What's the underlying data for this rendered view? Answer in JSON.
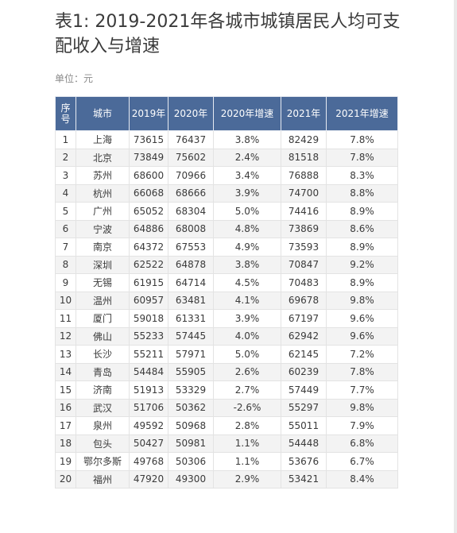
{
  "title": "表1: 2019-2021年各城市城镇居民人均可支配收入与增速",
  "unit": "单位：元",
  "table": {
    "headers": [
      "序号",
      "城市",
      "2019年",
      "2020年",
      "2020年增速",
      "2021年",
      "2021年增速"
    ],
    "rows": [
      [
        "1",
        "上海",
        "73615",
        "76437",
        "3.8%",
        "82429",
        "7.8%"
      ],
      [
        "2",
        "北京",
        "73849",
        "75602",
        "2.4%",
        "81518",
        "7.8%"
      ],
      [
        "3",
        "苏州",
        "68600",
        "70966",
        "3.4%",
        "76888",
        "8.3%"
      ],
      [
        "4",
        "杭州",
        "66068",
        "68666",
        "3.9%",
        "74700",
        "8.8%"
      ],
      [
        "5",
        "广州",
        "65052",
        "68304",
        "5.0%",
        "74416",
        "8.9%"
      ],
      [
        "6",
        "宁波",
        "64886",
        "68008",
        "4.8%",
        "73869",
        "8.6%"
      ],
      [
        "7",
        "南京",
        "64372",
        "67553",
        "4.9%",
        "73593",
        "8.9%"
      ],
      [
        "8",
        "深圳",
        "62522",
        "64878",
        "3.8%",
        "70847",
        "9.2%"
      ],
      [
        "9",
        "无锡",
        "61915",
        "64714",
        "4.5%",
        "70483",
        "8.9%"
      ],
      [
        "10",
        "温州",
        "60957",
        "63481",
        "4.1%",
        "69678",
        "9.8%"
      ],
      [
        "11",
        "厦门",
        "59018",
        "61331",
        "3.9%",
        "67197",
        "9.6%"
      ],
      [
        "12",
        "佛山",
        "55233",
        "57445",
        "4.0%",
        "62942",
        "9.6%"
      ],
      [
        "13",
        "长沙",
        "55211",
        "57971",
        "5.0%",
        "62145",
        "7.2%"
      ],
      [
        "14",
        "青岛",
        "54484",
        "55905",
        "2.6%",
        "60239",
        "7.8%"
      ],
      [
        "15",
        "济南",
        "51913",
        "53329",
        "2.7%",
        "57449",
        "7.7%"
      ],
      [
        "16",
        "武汉",
        "51706",
        "50362",
        "-2.6%",
        "55297",
        "9.8%"
      ],
      [
        "17",
        "泉州",
        "49592",
        "50968",
        "2.8%",
        "55011",
        "7.9%"
      ],
      [
        "18",
        "包头",
        "50427",
        "50981",
        "1.1%",
        "54448",
        "6.8%"
      ],
      [
        "19",
        "鄂尔多斯",
        "49768",
        "50306",
        "1.1%",
        "53676",
        "6.7%"
      ],
      [
        "20",
        "福州",
        "47920",
        "49300",
        "2.9%",
        "53421",
        "8.4%"
      ]
    ]
  }
}
